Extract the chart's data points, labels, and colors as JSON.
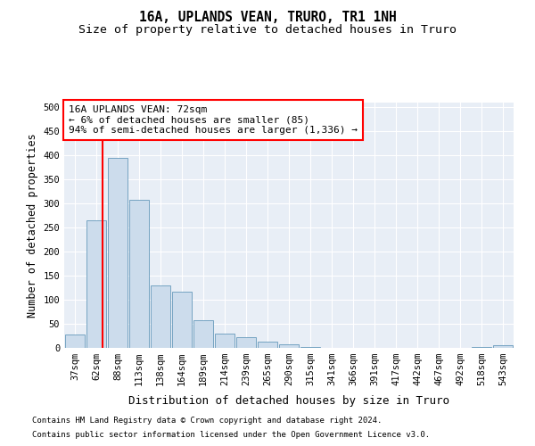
{
  "title": "16A, UPLANDS VEAN, TRURO, TR1 1NH",
  "subtitle": "Size of property relative to detached houses in Truro",
  "xlabel": "Distribution of detached houses by size in Truro",
  "ylabel": "Number of detached properties",
  "footnote1": "Contains HM Land Registry data © Crown copyright and database right 2024.",
  "footnote2": "Contains public sector information licensed under the Open Government Licence v3.0.",
  "bar_color": "#ccdcec",
  "bar_edge_color": "#6699bb",
  "background_color": "#e8eef6",
  "categories": [
    "37sqm",
    "62sqm",
    "88sqm",
    "113sqm",
    "138sqm",
    "164sqm",
    "189sqm",
    "214sqm",
    "239sqm",
    "265sqm",
    "290sqm",
    "315sqm",
    "341sqm",
    "366sqm",
    "391sqm",
    "417sqm",
    "442sqm",
    "467sqm",
    "492sqm",
    "518sqm",
    "543sqm"
  ],
  "values": [
    27,
    265,
    395,
    308,
    130,
    117,
    57,
    30,
    22,
    13,
    7,
    2,
    0,
    0,
    0,
    0,
    0,
    0,
    0,
    2,
    5
  ],
  "ylim": [
    0,
    510
  ],
  "yticks": [
    0,
    50,
    100,
    150,
    200,
    250,
    300,
    350,
    400,
    450,
    500
  ],
  "annotation_line1": "16A UPLANDS VEAN: 72sqm",
  "annotation_line2": "← 6% of detached houses are smaller (85)",
  "annotation_line3": "94% of semi-detached houses are larger (1,336) →",
  "red_line_x": 1.307,
  "grid_color": "#ffffff",
  "title_fontsize": 10.5,
  "subtitle_fontsize": 9.5,
  "tick_fontsize": 7.5,
  "ylabel_fontsize": 8.5,
  "xlabel_fontsize": 9,
  "annotation_fontsize": 8,
  "footnote_fontsize": 6.5
}
